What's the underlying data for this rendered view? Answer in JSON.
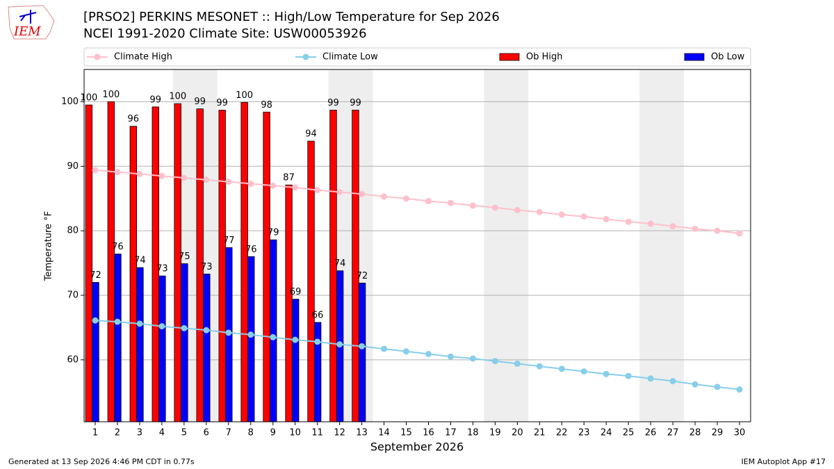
{
  "logo_text": "IEM",
  "footer_left": "Generated at 13 Sep 2026 4:46 PM CDT in 0.77s",
  "footer_right": "IEM Autoplot App #17",
  "chart_data": {
    "type": "bar_line",
    "title": "[PRSO2] PERKINS MESONET :: High/Low Temperature for Sep 2026",
    "subtitle": "NCEI 1991-2020 Climate Site: USW00053926",
    "ylabel": "Temperature °F",
    "xlabel": "September 2026",
    "xlim": [
      0.5,
      30.5
    ],
    "xticks": [
      1,
      2,
      3,
      4,
      5,
      6,
      7,
      8,
      9,
      10,
      11,
      12,
      13,
      14,
      15,
      16,
      17,
      18,
      19,
      20,
      21,
      22,
      23,
      24,
      25,
      26,
      27,
      28,
      29,
      30
    ],
    "ylim": [
      50.4,
      105
    ],
    "yticks": [
      60,
      70,
      80,
      90,
      100
    ],
    "grid": true,
    "highlight_ranges": [
      [
        4.5,
        6.5
      ],
      [
        11.5,
        13.5
      ],
      [
        18.5,
        20.5
      ],
      [
        25.5,
        27.5
      ]
    ],
    "series": [
      {
        "name": "Climate High",
        "kind": "line",
        "color": "#ffc0cb",
        "x": [
          1,
          2,
          3,
          4,
          5,
          6,
          7,
          8,
          9,
          10,
          11,
          12,
          13,
          14,
          15,
          16,
          17,
          18,
          19,
          20,
          21,
          22,
          23,
          24,
          25,
          26,
          27,
          28,
          29,
          30
        ],
        "values": [
          89.4,
          89.1,
          88.8,
          88.5,
          88.2,
          87.9,
          87.6,
          87.3,
          87.0,
          86.7,
          86.3,
          86.0,
          85.7,
          85.3,
          85.0,
          84.6,
          84.3,
          83.9,
          83.6,
          83.2,
          82.9,
          82.5,
          82.2,
          81.8,
          81.4,
          81.1,
          80.7,
          80.3,
          80.0,
          79.6
        ]
      },
      {
        "name": "Climate Low",
        "kind": "line",
        "color": "#87ceeb",
        "x": [
          1,
          2,
          3,
          4,
          5,
          6,
          7,
          8,
          9,
          10,
          11,
          12,
          13,
          14,
          15,
          16,
          17,
          18,
          19,
          20,
          21,
          22,
          23,
          24,
          25,
          26,
          27,
          28,
          29,
          30
        ],
        "values": [
          66.1,
          65.9,
          65.6,
          65.2,
          64.9,
          64.6,
          64.2,
          63.9,
          63.5,
          63.1,
          62.8,
          62.4,
          62.1,
          61.7,
          61.3,
          60.9,
          60.5,
          60.2,
          59.8,
          59.4,
          59.0,
          58.6,
          58.2,
          57.8,
          57.5,
          57.1,
          56.7,
          56.2,
          55.8,
          55.4
        ]
      },
      {
        "name": "Ob High",
        "kind": "bar",
        "color": "#ff0000",
        "x": [
          1,
          2,
          3,
          4,
          5,
          6,
          7,
          8,
          9,
          10,
          11,
          12,
          13
        ],
        "values": [
          99.5,
          100,
          96.2,
          99.2,
          99.7,
          98.9,
          98.7,
          99.9,
          98.4,
          87.1,
          93.9,
          98.7,
          98.7
        ],
        "value_labels": [
          100,
          100,
          96,
          99,
          100,
          99,
          99,
          100,
          98,
          87,
          94,
          99,
          99
        ]
      },
      {
        "name": "Ob Low",
        "kind": "bar",
        "color": "#0000ff",
        "x": [
          1,
          2,
          3,
          4,
          5,
          6,
          7,
          8,
          9,
          10,
          11,
          12,
          13
        ],
        "values": [
          72.0,
          76.4,
          74.3,
          73.0,
          74.9,
          73.3,
          77.4,
          76.0,
          78.6,
          69.4,
          65.8,
          73.8,
          71.9
        ],
        "value_labels": [
          72,
          76,
          74,
          73,
          75,
          73,
          77,
          76,
          79,
          69,
          66,
          74,
          72
        ]
      }
    ]
  }
}
